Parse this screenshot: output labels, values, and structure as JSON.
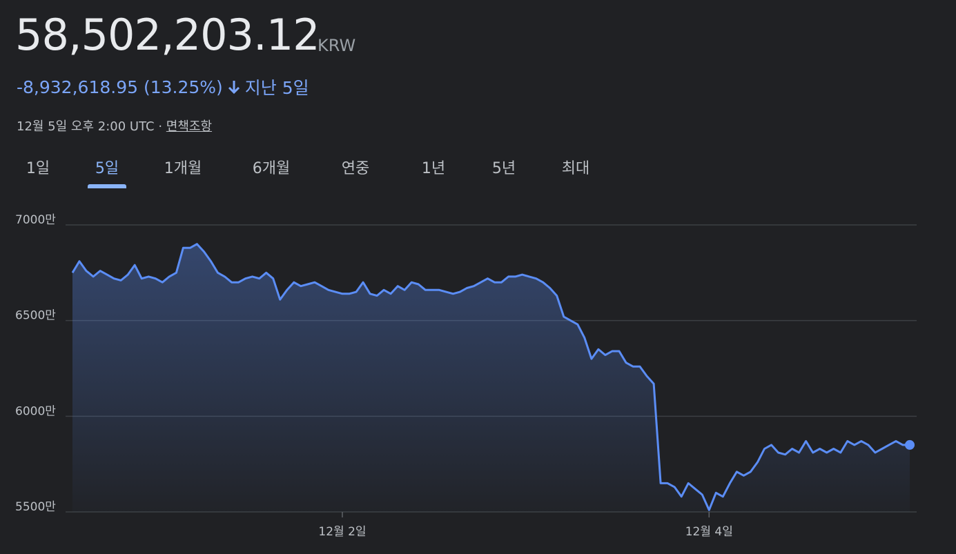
{
  "header": {
    "price": "58,502,203.12",
    "currency": "KRW",
    "change": "-8,932,618.95 (13.25%)",
    "period": "지난 5일",
    "timestamp": "12월 5일 오후 2:00 UTC",
    "separator": "·",
    "disclaimer": "면책조항"
  },
  "tabs": [
    "1일",
    "5일",
    "1개월",
    "6개월",
    "연중",
    "1년",
    "5년",
    "최대"
  ],
  "selected_tab": 1,
  "chart_data": {
    "type": "line",
    "color": "#5b8df5",
    "grid": true,
    "ylim": [
      5500,
      7000
    ],
    "yticks": [
      {
        "value": 7000,
        "label": "7000만"
      },
      {
        "value": 6500,
        "label": "6500만"
      },
      {
        "value": 6000,
        "label": "6000만"
      },
      {
        "value": 5500,
        "label": "5500만"
      }
    ],
    "categories": [
      null,
      null,
      null,
      null,
      null,
      null,
      null,
      null,
      null,
      null,
      null,
      null,
      null,
      null,
      null,
      null,
      null,
      null,
      null,
      null,
      null,
      null,
      null,
      null,
      null,
      null,
      null,
      null,
      null,
      null,
      null,
      null,
      null,
      null,
      null,
      null,
      null,
      null,
      null,
      "12월 2일",
      null,
      null,
      null,
      null,
      null,
      null,
      null,
      null,
      null,
      null,
      null,
      null,
      null,
      null,
      null,
      null,
      null,
      null,
      null,
      null,
      null,
      null,
      null,
      null,
      null,
      null,
      null,
      null,
      null,
      null,
      null,
      null,
      null,
      null,
      null,
      null,
      null,
      null,
      null,
      null,
      null,
      null,
      null,
      null,
      null,
      null,
      null,
      null,
      null,
      null,
      null,
      null,
      "12월 4일",
      null,
      null,
      null,
      null,
      null,
      null,
      null,
      null,
      null,
      null,
      null,
      null,
      null,
      null,
      null,
      null,
      null,
      null,
      null,
      null,
      null,
      null,
      null,
      null,
      null,
      null,
      null,
      null,
      null
    ],
    "values": [
      6750,
      6810,
      6760,
      6730,
      6760,
      6740,
      6720,
      6710,
      6740,
      6790,
      6720,
      6730,
      6720,
      6700,
      6730,
      6750,
      6880,
      6880,
      6900,
      6860,
      6810,
      6750,
      6730,
      6700,
      6700,
      6720,
      6730,
      6720,
      6750,
      6720,
      6610,
      6660,
      6700,
      6680,
      6690,
      6700,
      6680,
      6660,
      6650,
      6640,
      6640,
      6650,
      6700,
      6640,
      6630,
      6660,
      6640,
      6680,
      6660,
      6700,
      6690,
      6660,
      6660,
      6660,
      6650,
      6640,
      6650,
      6670,
      6680,
      6700,
      6720,
      6700,
      6700,
      6730,
      6730,
      6740,
      6730,
      6720,
      6700,
      6670,
      6630,
      6520,
      6500,
      6480,
      6410,
      6300,
      6350,
      6320,
      6340,
      6340,
      6280,
      6260,
      6260,
      6210,
      6170,
      5650,
      5650,
      5630,
      5580,
      5650,
      5620,
      5590,
      5510,
      5600,
      5580,
      5650,
      5710,
      5690,
      5710,
      5760,
      5830,
      5850,
      5810,
      5800,
      5830,
      5810,
      5870,
      5810,
      5830,
      5810,
      5830,
      5810,
      5870,
      5850,
      5870,
      5850,
      5810,
      5830,
      5850,
      5870,
      5850,
      5850
    ]
  }
}
